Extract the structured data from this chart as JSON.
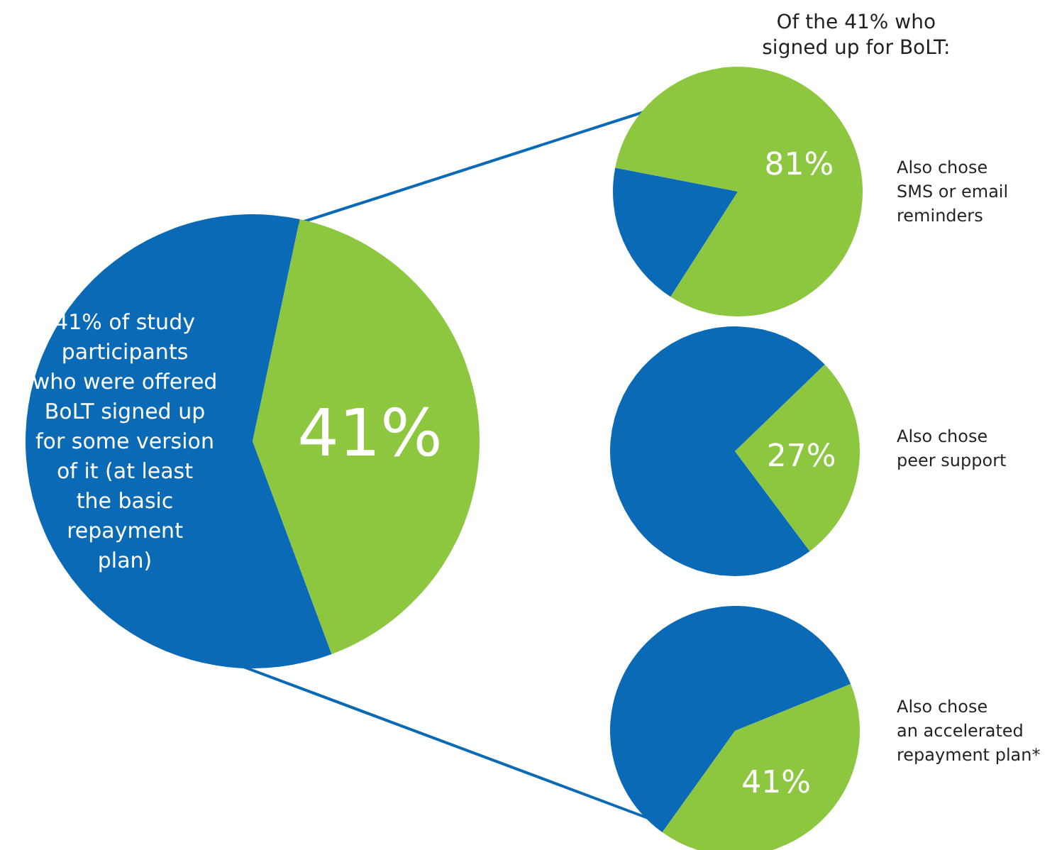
{
  "chart_data": [
    {
      "type": "pie",
      "categories": [
        null,
        null
      ],
      "values": [
        41,
        59
      ],
      "colors": [
        "#8dc63f",
        "#0a6ab6"
      ],
      "value_labels": [
        "41%",
        null
      ],
      "annotations": [
        "41% of study\nparticipants\nwho were offered\nBoLT signed up\nfor some version\nof it (at least\nthe basic\nrepayment\nplan)"
      ]
    },
    {
      "type": "pie",
      "title": "Of the 41% who\nsigned up for BoLT:",
      "categories": [
        null,
        null
      ],
      "values": [
        81,
        19
      ],
      "colors": [
        "#8dc63f",
        "#0a6ab6"
      ],
      "value_labels": [
        "81%",
        null
      ],
      "annotations": [
        "Also chose\nSMS or email\nreminders"
      ]
    },
    {
      "type": "pie",
      "categories": [
        null,
        null
      ],
      "values": [
        27,
        73
      ],
      "colors": [
        "#8dc63f",
        "#0a6ab6"
      ],
      "value_labels": [
        "27%",
        null
      ],
      "annotations": [
        "Also chose\npeer support"
      ]
    },
    {
      "type": "pie",
      "categories": [
        null,
        null
      ],
      "values": [
        41,
        59
      ],
      "colors": [
        "#8dc63f",
        "#0a6ab6"
      ],
      "value_labels": [
        "41%",
        null
      ],
      "annotations": [
        "Also chose\nan accelerated\nrepayment plan*"
      ]
    }
  ]
}
